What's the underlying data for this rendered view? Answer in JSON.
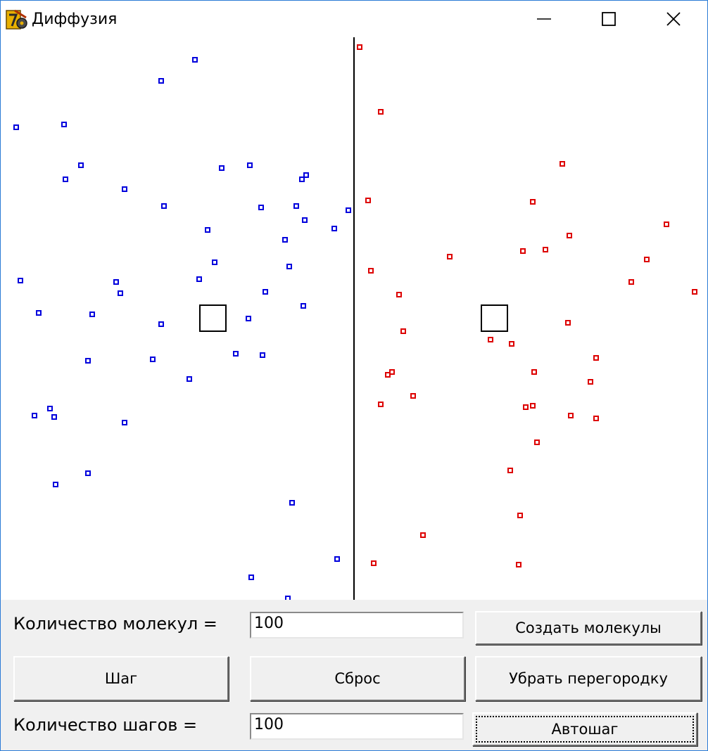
{
  "window": {
    "title": "Диффузия",
    "icon": "app-gear-icon",
    "controls": [
      "minimize-icon",
      "maximize-icon",
      "close-icon"
    ]
  },
  "simulation": {
    "partition_visible": true,
    "colors": {
      "left_molecules": "#0000dd",
      "right_molecules": "#dd0000",
      "partition": "#000000"
    }
  },
  "panel": {
    "molecule_count_label": "Количество молекул =",
    "molecule_count_value": "100",
    "create_button": "Создать молекулы",
    "step_button": "Шаг",
    "reset_button": "Сброс",
    "remove_partition_button": "Убрать перегородку",
    "step_count_label": "Количество шагов =",
    "step_count_value": "100",
    "autostep_button": "Автошаг"
  }
}
